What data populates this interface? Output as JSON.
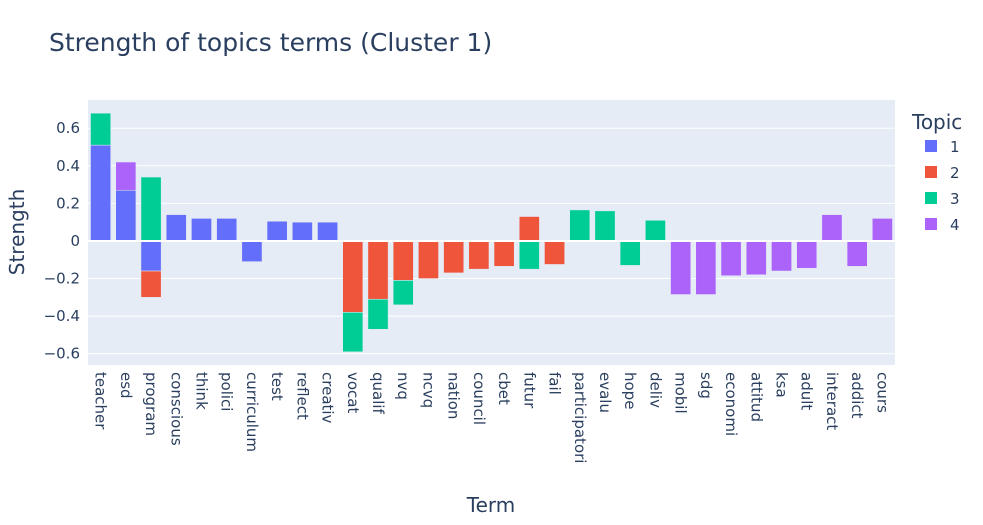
{
  "chart_data": {
    "type": "bar",
    "barmode": "relative",
    "title": "Strength of topics terms (Cluster 1)",
    "xlabel": "Term",
    "ylabel": "Strength",
    "ylim": [
      -0.66,
      0.75
    ],
    "yticks": [
      -0.6,
      -0.4,
      -0.2,
      0,
      0.2,
      0.4,
      0.6
    ],
    "ytick_labels": [
      "−0.6",
      "−0.4",
      "−0.2",
      "0",
      "0.2",
      "0.4",
      "0.6"
    ],
    "grid": true,
    "legend": {
      "title": "Topic",
      "placement": "right"
    },
    "categories": [
      "teacher",
      "esd",
      "program",
      "conscious",
      "think",
      "polici",
      "curriculum",
      "test",
      "reflect",
      "creativ",
      "vocat",
      "qualif",
      "nvq",
      "ncvq",
      "nation",
      "council",
      "cbet",
      "futur",
      "fail",
      "participatori",
      "evalu",
      "hope",
      "deliv",
      "mobil",
      "sdg",
      "economi",
      "attitud",
      "ksa",
      "adult",
      "interact",
      "addict",
      "cours"
    ],
    "series": [
      {
        "name": "1",
        "color": "#636efa",
        "values": [
          0.51,
          0.27,
          -0.16,
          0.14,
          0.12,
          0.12,
          -0.11,
          0.105,
          0.1,
          0.1,
          0,
          0,
          0,
          0,
          0,
          0,
          0,
          0,
          0,
          0,
          0,
          0,
          0,
          0,
          0,
          0,
          0,
          0,
          0,
          0,
          0,
          0
        ]
      },
      {
        "name": "2",
        "color": "#ef553b",
        "values": [
          0,
          0,
          -0.14,
          0,
          0,
          0,
          0,
          0,
          0,
          0,
          -0.38,
          -0.31,
          -0.21,
          -0.2,
          -0.17,
          -0.15,
          -0.135,
          0.13,
          -0.125,
          0,
          0,
          0,
          0,
          0,
          0,
          0,
          0,
          0,
          0,
          0,
          0,
          0
        ]
      },
      {
        "name": "3",
        "color": "#00cc96",
        "values": [
          0.17,
          0,
          0.34,
          0,
          0,
          0,
          0,
          0,
          0,
          0,
          -0.21,
          -0.16,
          -0.13,
          0,
          0,
          0,
          0,
          -0.15,
          0,
          0.165,
          0.16,
          -0.13,
          0.11,
          0,
          0,
          0,
          0,
          0,
          0,
          0,
          0,
          0
        ]
      },
      {
        "name": "4",
        "color": "#ab63fa",
        "values": [
          0,
          0.15,
          0,
          0,
          0,
          0,
          0,
          0,
          0,
          0,
          0,
          0,
          0,
          0,
          0,
          0,
          0,
          0,
          0,
          0,
          0,
          0,
          0,
          -0.285,
          -0.285,
          -0.185,
          -0.18,
          -0.16,
          -0.145,
          0.14,
          -0.135,
          0.12
        ]
      }
    ]
  }
}
